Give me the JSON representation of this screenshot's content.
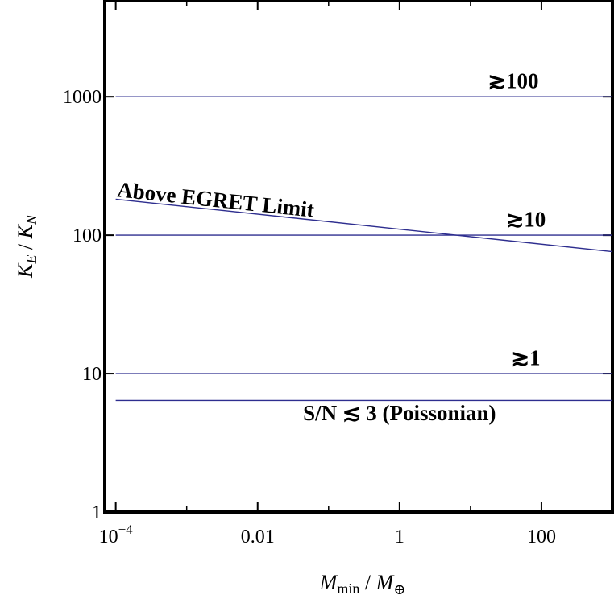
{
  "chart_data": {
    "type": "line",
    "xscale": "log",
    "yscale": "log",
    "xlim": [
      7e-05,
      1000
    ],
    "ylim": [
      1,
      5000
    ],
    "xticks": [
      {
        "value": 0.0001,
        "base": "10",
        "exp": "−4"
      },
      {
        "value": 0.01,
        "label": "0.01"
      },
      {
        "value": 1,
        "label": "1"
      },
      {
        "value": 100,
        "label": "100"
      }
    ],
    "yticks": [
      {
        "value": 1,
        "label": "1"
      },
      {
        "value": 10,
        "label": "10"
      },
      {
        "value": 100,
        "label": "100"
      },
      {
        "value": 1000,
        "label": "1000"
      }
    ],
    "xlabel": {
      "main": "M",
      "sub": "min",
      "sep": " / ",
      "main2": "M",
      "sub2": "⊕"
    },
    "ylabel": {
      "main": "K",
      "sub": "E",
      "sep": " / ",
      "main2": "K",
      "sub2": "N"
    },
    "grid": false,
    "line_color": "#2e2e8f",
    "series": [
      {
        "x": [
          0.0001,
          1000
        ],
        "y": [
          1000,
          1000
        ]
      },
      {
        "x": [
          0.0001,
          1000
        ],
        "y": [
          100,
          100
        ]
      },
      {
        "x": [
          0.0001,
          1000
        ],
        "y": [
          10,
          10
        ]
      },
      {
        "x": [
          0.0001,
          1000
        ],
        "y": [
          6.4,
          6.4
        ]
      },
      {
        "x": [
          0.0001,
          1000
        ],
        "y": [
          182,
          76
        ]
      }
    ],
    "annotations": [
      {
        "text": "≳100",
        "x": 40,
        "y": 1150,
        "rotate": 0
      },
      {
        "text": "≳10",
        "x": 60,
        "y": 115,
        "rotate": 0
      },
      {
        "text": "≳1",
        "x": 60,
        "y": 11.5,
        "rotate": 0
      },
      {
        "text": "S/N ≲ 3 (Poissonian)",
        "x": 1,
        "y": 4.6,
        "rotate": 0
      },
      {
        "text": "Above EGRET Limit",
        "x": 0.0025,
        "y": 160,
        "rotate": 6
      }
    ]
  }
}
